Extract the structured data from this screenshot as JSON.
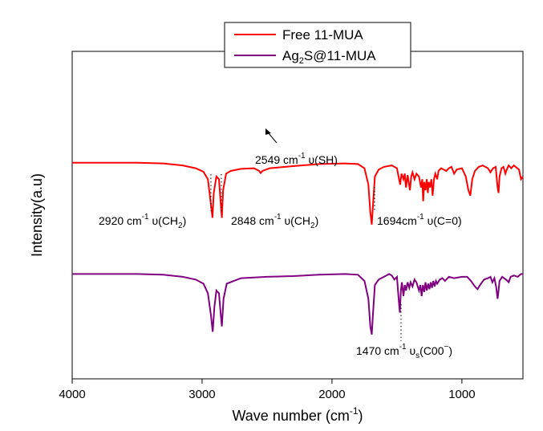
{
  "chart_data": {
    "type": "line",
    "title": "",
    "xlabel": "Wave number (cm",
    "xlabel_sup": "-1",
    "xlabel_tail": ")",
    "ylabel": "Intensity(a.u)",
    "xlim": [
      4000,
      530
    ],
    "x_reversed": true,
    "xticks": [
      4000,
      3000,
      2000,
      1000
    ],
    "xtick_labels": [
      "4000",
      "3000",
      "2000",
      "1000"
    ],
    "yticks": [],
    "grid": false,
    "legend_position": "top-center",
    "series": [
      {
        "name": "Free 11-MUA",
        "color": "#ff0000",
        "offset": 0.66,
        "points": [
          [
            4000,
            0.0
          ],
          [
            3500,
            0.0
          ],
          [
            3300,
            0.005
          ],
          [
            3150,
            0.02
          ],
          [
            3050,
            0.04
          ],
          [
            2990,
            0.065
          ],
          [
            2955,
            0.12
          ],
          [
            2935,
            0.28
          ],
          [
            2920,
            0.4
          ],
          [
            2910,
            0.22
          ],
          [
            2890,
            0.1
          ],
          [
            2870,
            0.12
          ],
          [
            2858,
            0.28
          ],
          [
            2848,
            0.4
          ],
          [
            2838,
            0.2
          ],
          [
            2815,
            0.08
          ],
          [
            2780,
            0.06
          ],
          [
            2700,
            0.045
          ],
          [
            2600,
            0.04
          ],
          [
            2560,
            0.06
          ],
          [
            2549,
            0.075
          ],
          [
            2535,
            0.06
          ],
          [
            2480,
            0.04
          ],
          [
            2300,
            0.025
          ],
          [
            2100,
            0.01
          ],
          [
            1900,
            0.005
          ],
          [
            1800,
            0.01
          ],
          [
            1750,
            0.04
          ],
          [
            1720,
            0.16
          ],
          [
            1705,
            0.36
          ],
          [
            1694,
            0.45
          ],
          [
            1685,
            0.32
          ],
          [
            1670,
            0.1
          ],
          [
            1640,
            0.05
          ],
          [
            1600,
            0.03
          ],
          [
            1540,
            0.02
          ],
          [
            1500,
            0.04
          ],
          [
            1475,
            0.16
          ],
          [
            1465,
            0.08
          ],
          [
            1450,
            0.12
          ],
          [
            1440,
            0.08
          ],
          [
            1430,
            0.18
          ],
          [
            1418,
            0.09
          ],
          [
            1410,
            0.14
          ],
          [
            1400,
            0.2
          ],
          [
            1390,
            0.1
          ],
          [
            1380,
            0.07
          ],
          [
            1365,
            0.12
          ],
          [
            1350,
            0.08
          ],
          [
            1330,
            0.1
          ],
          [
            1315,
            0.18
          ],
          [
            1305,
            0.12
          ],
          [
            1298,
            0.28
          ],
          [
            1290,
            0.14
          ],
          [
            1280,
            0.2
          ],
          [
            1270,
            0.12
          ],
          [
            1262,
            0.22
          ],
          [
            1255,
            0.14
          ],
          [
            1245,
            0.18
          ],
          [
            1235,
            0.12
          ],
          [
            1225,
            0.24
          ],
          [
            1215,
            0.12
          ],
          [
            1205,
            0.08
          ],
          [
            1190,
            0.12
          ],
          [
            1180,
            0.06
          ],
          [
            1160,
            0.04
          ],
          [
            1120,
            0.06
          ],
          [
            1100,
            0.04
          ],
          [
            1080,
            0.03
          ],
          [
            1060,
            0.08
          ],
          [
            1040,
            0.05
          ],
          [
            1000,
            0.04
          ],
          [
            970,
            0.1
          ],
          [
            950,
            0.2
          ],
          [
            935,
            0.24
          ],
          [
            920,
            0.12
          ],
          [
            900,
            0.06
          ],
          [
            870,
            0.03
          ],
          [
            840,
            0.02
          ],
          [
            800,
            0.04
          ],
          [
            780,
            0.07
          ],
          [
            760,
            0.04
          ],
          [
            740,
            0.03
          ],
          [
            725,
            0.18
          ],
          [
            718,
            0.22
          ],
          [
            710,
            0.1
          ],
          [
            695,
            0.04
          ],
          [
            680,
            0.03
          ],
          [
            665,
            0.08
          ],
          [
            655,
            0.05
          ],
          [
            640,
            0.02
          ],
          [
            620,
            0.04
          ],
          [
            600,
            0.02
          ],
          [
            560,
            0.05
          ],
          [
            545,
            0.12
          ],
          [
            530,
            0.1
          ]
        ]
      },
      {
        "name": "Ag₂S@11-MUA",
        "color": "#800080",
        "offset": 0.32,
        "points": [
          [
            4000,
            0.0
          ],
          [
            3500,
            0.0
          ],
          [
            3300,
            0.005
          ],
          [
            3150,
            0.02
          ],
          [
            3050,
            0.04
          ],
          [
            2990,
            0.07
          ],
          [
            2955,
            0.14
          ],
          [
            2932,
            0.3
          ],
          [
            2918,
            0.42
          ],
          [
            2905,
            0.24
          ],
          [
            2890,
            0.12
          ],
          [
            2870,
            0.14
          ],
          [
            2858,
            0.28
          ],
          [
            2848,
            0.38
          ],
          [
            2835,
            0.18
          ],
          [
            2810,
            0.07
          ],
          [
            2700,
            0.03
          ],
          [
            2500,
            0.02
          ],
          [
            2300,
            0.015
          ],
          [
            2100,
            0.005
          ],
          [
            1900,
            0.0
          ],
          [
            1800,
            0.005
          ],
          [
            1750,
            0.05
          ],
          [
            1720,
            0.18
          ],
          [
            1705,
            0.38
          ],
          [
            1694,
            0.44
          ],
          [
            1685,
            0.3
          ],
          [
            1670,
            0.08
          ],
          [
            1640,
            0.04
          ],
          [
            1600,
            0.02
          ],
          [
            1560,
            0.0
          ],
          [
            1540,
            0.01
          ],
          [
            1520,
            0.04
          ],
          [
            1500,
            0.02
          ],
          [
            1485,
            0.2
          ],
          [
            1478,
            0.28
          ],
          [
            1470,
            0.12
          ],
          [
            1462,
            0.06
          ],
          [
            1450,
            0.16
          ],
          [
            1440,
            0.08
          ],
          [
            1430,
            0.12
          ],
          [
            1418,
            0.06
          ],
          [
            1405,
            0.1
          ],
          [
            1395,
            0.06
          ],
          [
            1380,
            0.09
          ],
          [
            1365,
            0.04
          ],
          [
            1350,
            0.06
          ],
          [
            1330,
            0.12
          ],
          [
            1320,
            0.08
          ],
          [
            1310,
            0.16
          ],
          [
            1300,
            0.08
          ],
          [
            1290,
            0.13
          ],
          [
            1280,
            0.06
          ],
          [
            1270,
            0.12
          ],
          [
            1260,
            0.07
          ],
          [
            1250,
            0.11
          ],
          [
            1240,
            0.06
          ],
          [
            1230,
            0.1
          ],
          [
            1220,
            0.05
          ],
          [
            1210,
            0.09
          ],
          [
            1200,
            0.05
          ],
          [
            1190,
            0.07
          ],
          [
            1170,
            0.04
          ],
          [
            1150,
            0.03
          ],
          [
            1130,
            0.05
          ],
          [
            1110,
            0.03
          ],
          [
            1100,
            0.02
          ],
          [
            1060,
            0.03
          ],
          [
            1000,
            0.02
          ],
          [
            960,
            0.02
          ],
          [
            930,
            0.05
          ],
          [
            900,
            0.09
          ],
          [
            880,
            0.11
          ],
          [
            860,
            0.08
          ],
          [
            830,
            0.04
          ],
          [
            800,
            0.03
          ],
          [
            780,
            0.02
          ],
          [
            765,
            0.06
          ],
          [
            750,
            0.03
          ],
          [
            735,
            0.1
          ],
          [
            725,
            0.18
          ],
          [
            718,
            0.12
          ],
          [
            710,
            0.05
          ],
          [
            690,
            0.02
          ],
          [
            660,
            0.04
          ],
          [
            640,
            0.06
          ],
          [
            625,
            0.02
          ],
          [
            600,
            0.01
          ],
          [
            570,
            0.02
          ],
          [
            545,
            0.0
          ],
          [
            530,
            0.0
          ]
        ]
      }
    ],
    "annotations": [
      {
        "id": "a2549",
        "text": "2549 cm",
        "sup": "-1",
        "tail": " υ(SH)"
      },
      {
        "id": "a2920",
        "text": "2920 cm",
        "sup": "-1",
        "tail": " υ(CH",
        "sub": "2",
        "end": ")"
      },
      {
        "id": "a2848",
        "text": "2848 cm",
        "sup": "-1",
        "tail": " υ(CH",
        "sub": "2",
        "end": ")"
      },
      {
        "id": "a1694",
        "text": "1694cm",
        "sup": "-1",
        "tail": " υ(C=0)"
      },
      {
        "id": "a1470",
        "text": "1470 cm",
        "sup": "-1",
        "tail": " υ",
        "sub": "s",
        "mid": "(C00",
        "sup2": "−",
        "end": ")"
      }
    ],
    "legend": {
      "entries": [
        {
          "label": "Free 11-MUA",
          "color": "#ff0000"
        },
        {
          "prefix": "Ag",
          "sub": "2",
          "suffix": "S@11-MUA",
          "color": "#800080"
        }
      ]
    }
  }
}
